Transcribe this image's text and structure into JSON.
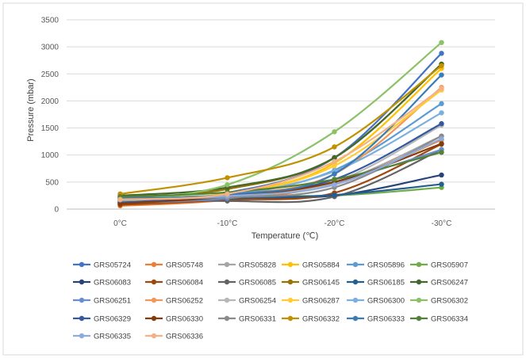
{
  "chart_data": {
    "type": "line",
    "xlabel": "Temperature (℃)",
    "ylabel": "Pressure (mbar)",
    "categories": [
      "0°C",
      "-10°C",
      "-20°C",
      "-30°C"
    ],
    "ylim": [
      0,
      3500
    ],
    "yticks": [
      "0",
      "500",
      "1000",
      "1500",
      "2000",
      "2500",
      "3000",
      "3500"
    ],
    "grid": true,
    "legend_position": "bottom",
    "series": [
      {
        "name": "GRS05724",
        "color": "#4472c4",
        "values": [
          130,
          300,
          950,
          2880
        ]
      },
      {
        "name": "GRS05748",
        "color": "#ed7d31",
        "values": [
          60,
          170,
          470,
          1280
        ]
      },
      {
        "name": "GRS05828",
        "color": "#a5a5a5",
        "values": [
          150,
          220,
          480,
          1350
        ]
      },
      {
        "name": "GRS05884",
        "color": "#ffc000",
        "values": [
          190,
          290,
          850,
          2600
        ]
      },
      {
        "name": "GRS05896",
        "color": "#5b9bd5",
        "values": [
          150,
          250,
          720,
          1950
        ]
      },
      {
        "name": "GRS05907",
        "color": "#70ad47",
        "values": [
          180,
          250,
          250,
          400
        ]
      },
      {
        "name": "GRS06083",
        "color": "#264478",
        "values": [
          90,
          200,
          250,
          630
        ]
      },
      {
        "name": "GRS06084",
        "color": "#9e480e",
        "values": [
          80,
          170,
          300,
          1200
        ]
      },
      {
        "name": "GRS06085",
        "color": "#636363",
        "values": [
          220,
          150,
          230,
          1100
        ]
      },
      {
        "name": "GRS06145",
        "color": "#997300",
        "values": [
          200,
          370,
          950,
          2680
        ]
      },
      {
        "name": "GRS06185",
        "color": "#255e91",
        "values": [
          120,
          200,
          260,
          460
        ]
      },
      {
        "name": "GRS06247",
        "color": "#43682b",
        "values": [
          250,
          400,
          950,
          2680
        ]
      },
      {
        "name": "GRS06251",
        "color": "#698ed0",
        "values": [
          110,
          200,
          500,
          1100
        ]
      },
      {
        "name": "GRS06252",
        "color": "#f1975a",
        "values": [
          130,
          260,
          650,
          2250
        ]
      },
      {
        "name": "GRS06254",
        "color": "#b7b7b7",
        "values": [
          160,
          230,
          500,
          1550
        ]
      },
      {
        "name": "GRS06287",
        "color": "#ffcd33",
        "values": [
          170,
          260,
          800,
          2200
        ]
      },
      {
        "name": "GRS06300",
        "color": "#7cafdd",
        "values": [
          200,
          270,
          700,
          1780
        ]
      },
      {
        "name": "GRS06302",
        "color": "#8cc168",
        "values": [
          150,
          450,
          1430,
          3080
        ]
      },
      {
        "name": "GRS06329",
        "color": "#335aa1",
        "values": [
          120,
          250,
          550,
          1580
        ]
      },
      {
        "name": "GRS06330",
        "color": "#843c0c",
        "values": [
          100,
          230,
          500,
          1210
        ]
      },
      {
        "name": "GRS06331",
        "color": "#8b8b8b",
        "values": [
          210,
          220,
          400,
          1350
        ]
      },
      {
        "name": "GRS06332",
        "color": "#c09100",
        "values": [
          280,
          580,
          1150,
          2650
        ]
      },
      {
        "name": "GRS06333",
        "color": "#3a7cb8",
        "values": [
          200,
          270,
          650,
          2480
        ]
      },
      {
        "name": "GRS06334",
        "color": "#548235",
        "values": [
          230,
          310,
          550,
          1050
        ]
      },
      {
        "name": "GRS06335",
        "color": "#8faadc",
        "values": [
          170,
          240,
          450,
          1300
        ]
      },
      {
        "name": "GRS06336",
        "color": "#f4b183",
        "values": [
          180,
          280,
          880,
          2230
        ]
      }
    ]
  }
}
